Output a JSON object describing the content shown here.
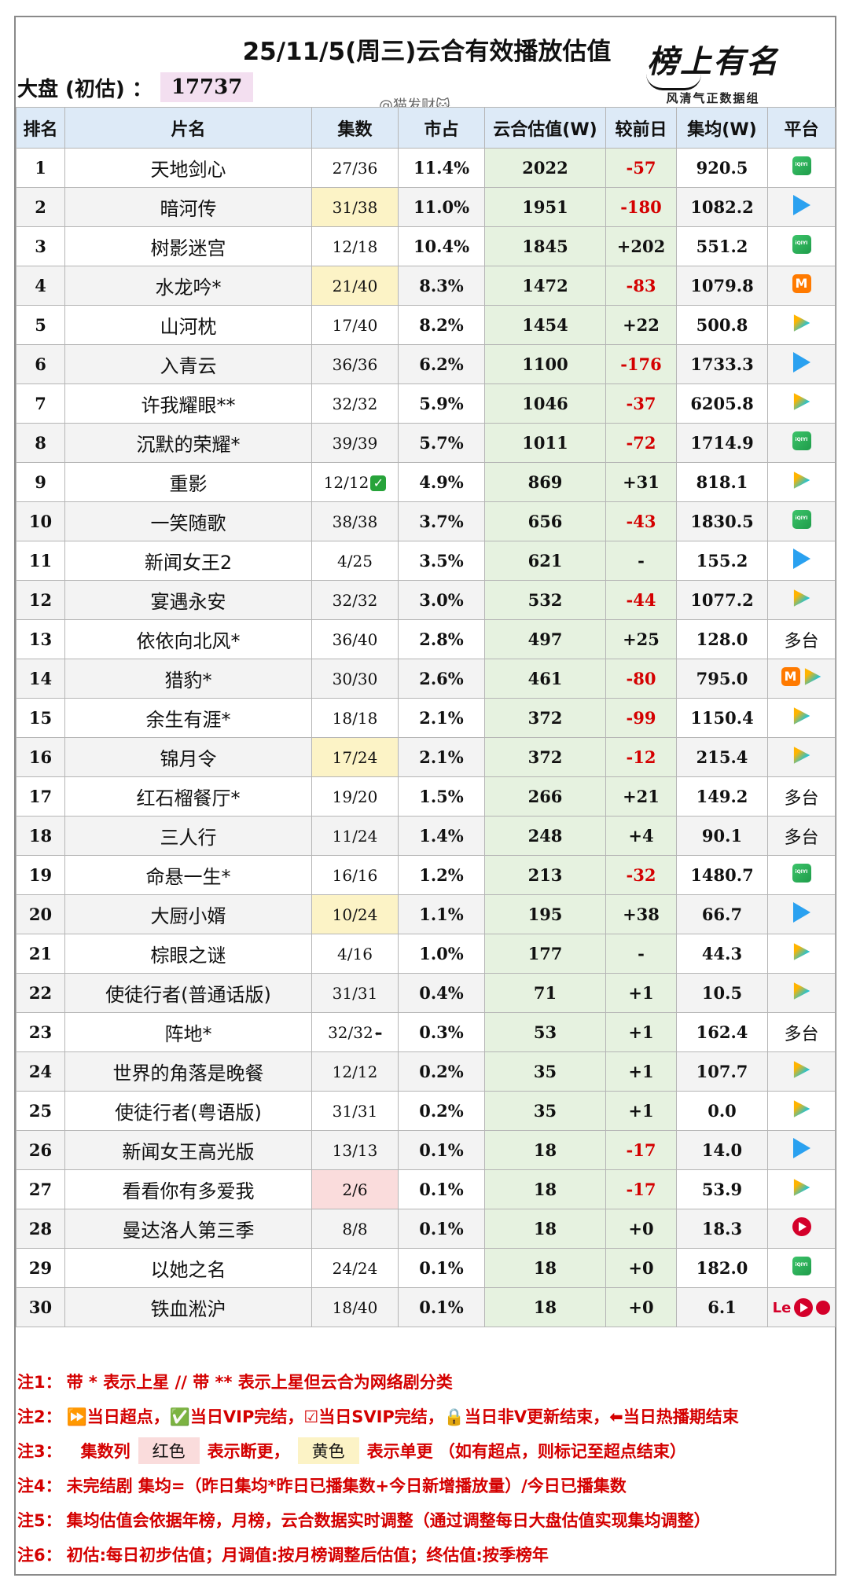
{
  "title": "25/11/5(周三)云合有效播放估值",
  "market": {
    "label": "大盘 (初估) ：",
    "value": "17737"
  },
  "watermark": "@猫发财🐱",
  "logo": {
    "script": "榜上有名",
    "sub": "风清气正数据组"
  },
  "headers": [
    "排名",
    "片名",
    "集数",
    "市占",
    "云合估值(W)",
    "较前日",
    "集均(W)",
    "平台"
  ],
  "rows": [
    {
      "rank": "1",
      "name": "天地剑心",
      "ep": "27/36",
      "share": "11.4%",
      "est": "2022",
      "change": "-57",
      "avg": "920.5",
      "platform": [
        "iqiyi"
      ]
    },
    {
      "rank": "2",
      "name": "暗河传",
      "ep": "31/38",
      "share": "11.0%",
      "est": "1951",
      "change": "-180",
      "avg": "1082.2",
      "platform": [
        "youku"
      ],
      "ep_color": "yellow"
    },
    {
      "rank": "3",
      "name": "树影迷宫",
      "ep": "12/18",
      "share": "10.4%",
      "est": "1845",
      "change": "+202",
      "avg": "551.2",
      "platform": [
        "iqiyi"
      ]
    },
    {
      "rank": "4",
      "name": "水龙吟*",
      "ep": "21/40",
      "share": "8.3%",
      "est": "1472",
      "change": "-83",
      "avg": "1079.8",
      "platform": [
        "mango"
      ],
      "ep_color": "yellow"
    },
    {
      "rank": "5",
      "name": "山河枕",
      "ep": "17/40",
      "share": "8.2%",
      "est": "1454",
      "change": "+22",
      "avg": "500.8",
      "platform": [
        "tencent"
      ]
    },
    {
      "rank": "6",
      "name": "入青云",
      "ep": "36/36",
      "share": "6.2%",
      "est": "1100",
      "change": "-176",
      "avg": "1733.3",
      "platform": [
        "youku"
      ]
    },
    {
      "rank": "7",
      "name": "许我耀眼**",
      "ep": "32/32",
      "share": "5.9%",
      "est": "1046",
      "change": "-37",
      "avg": "6205.8",
      "platform": [
        "tencent"
      ]
    },
    {
      "rank": "8",
      "name": "沉默的荣耀*",
      "ep": "39/39",
      "share": "5.7%",
      "est": "1011",
      "change": "-72",
      "avg": "1714.9",
      "platform": [
        "iqiyi"
      ]
    },
    {
      "rank": "9",
      "name": "重影",
      "ep": "12/12",
      "share": "4.9%",
      "est": "869",
      "change": "+31",
      "avg": "818.1",
      "platform": [
        "tencent"
      ],
      "ep_mark": "check"
    },
    {
      "rank": "10",
      "name": "一笑随歌",
      "ep": "38/38",
      "share": "3.7%",
      "est": "656",
      "change": "-43",
      "avg": "1830.5",
      "platform": [
        "iqiyi"
      ]
    },
    {
      "rank": "11",
      "name": "新闻女王2",
      "ep": "4/25",
      "share": "3.5%",
      "est": "621",
      "change": "-",
      "avg": "155.2",
      "platform": [
        "youku"
      ]
    },
    {
      "rank": "12",
      "name": "宴遇永安",
      "ep": "32/32",
      "share": "3.0%",
      "est": "532",
      "change": "-44",
      "avg": "1077.2",
      "platform": [
        "tencent"
      ]
    },
    {
      "rank": "13",
      "name": "依依向北风*",
      "ep": "36/40",
      "share": "2.8%",
      "est": "497",
      "change": "+25",
      "avg": "128.0",
      "platform_text": "多台"
    },
    {
      "rank": "14",
      "name": "猎豹*",
      "ep": "30/30",
      "share": "2.6%",
      "est": "461",
      "change": "-80",
      "avg": "795.0",
      "platform": [
        "mango",
        "tencent"
      ]
    },
    {
      "rank": "15",
      "name": "余生有涯*",
      "ep": "18/18",
      "share": "2.1%",
      "est": "372",
      "change": "-99",
      "avg": "1150.4",
      "platform": [
        "tencent"
      ]
    },
    {
      "rank": "16",
      "name": "锦月令",
      "ep": "17/24",
      "share": "2.1%",
      "est": "372",
      "change": "-12",
      "avg": "215.4",
      "platform": [
        "tencent"
      ],
      "ep_color": "yellow"
    },
    {
      "rank": "17",
      "name": "红石榴餐厅*",
      "ep": "19/20",
      "share": "1.5%",
      "est": "266",
      "change": "+21",
      "avg": "149.2",
      "platform_text": "多台"
    },
    {
      "rank": "18",
      "name": "三人行",
      "ep": "11/24",
      "share": "1.4%",
      "est": "248",
      "change": "+4",
      "avg": "90.1",
      "platform_text": "多台"
    },
    {
      "rank": "19",
      "name": "命悬一生*",
      "ep": "16/16",
      "share": "1.2%",
      "est": "213",
      "change": "-32",
      "avg": "1480.7",
      "platform": [
        "iqiyi"
      ]
    },
    {
      "rank": "20",
      "name": "大厨小婿",
      "ep": "10/24",
      "share": "1.1%",
      "est": "195",
      "change": "+38",
      "avg": "66.7",
      "platform": [
        "youku"
      ],
      "ep_color": "yellow"
    },
    {
      "rank": "21",
      "name": "棕眼之谜",
      "ep": "4/16",
      "share": "1.0%",
      "est": "177",
      "change": "-",
      "avg": "44.3",
      "platform": [
        "tencent"
      ]
    },
    {
      "rank": "22",
      "name": "使徒行者(普通话版)",
      "ep": "31/31",
      "share": "0.4%",
      "est": "71",
      "change": "+1",
      "avg": "10.5",
      "platform": [
        "tencent"
      ]
    },
    {
      "rank": "23",
      "name": "阵地*",
      "ep": "32/32",
      "share": "0.3%",
      "est": "53",
      "change": "+1",
      "avg": "162.4",
      "platform_text": "多台",
      "ep_mark": "end"
    },
    {
      "rank": "24",
      "name": "世界的角落是晚餐",
      "ep": "12/12",
      "share": "0.2%",
      "est": "35",
      "change": "+1",
      "avg": "107.7",
      "platform": [
        "tencent"
      ]
    },
    {
      "rank": "25",
      "name": "使徒行者(粤语版)",
      "ep": "31/31",
      "share": "0.2%",
      "est": "35",
      "change": "+1",
      "avg": "0.0",
      "platform": [
        "tencent"
      ]
    },
    {
      "rank": "26",
      "name": "新闻女王高光版",
      "ep": "13/13",
      "share": "0.1%",
      "est": "18",
      "change": "-17",
      "avg": "14.0",
      "platform": [
        "youku"
      ]
    },
    {
      "rank": "27",
      "name": "看看你有多爱我",
      "ep": "2/6",
      "share": "0.1%",
      "est": "18",
      "change": "-17",
      "avg": "53.9",
      "platform": [
        "tencent"
      ],
      "ep_color": "pink"
    },
    {
      "rank": "28",
      "name": "曼达洛人第三季",
      "ep": "8/8",
      "share": "0.1%",
      "est": "18",
      "change": "+0",
      "avg": "18.3",
      "platform": [
        "mgtv"
      ]
    },
    {
      "rank": "29",
      "name": "以她之名",
      "ep": "24/24",
      "share": "0.1%",
      "est": "18",
      "change": "+0",
      "avg": "182.0",
      "platform": [
        "iqiyi"
      ]
    },
    {
      "rank": "30",
      "name": "铁血淞沪",
      "ep": "18/40",
      "share": "0.1%",
      "est": "18",
      "change": "+0",
      "avg": "6.1",
      "platform": [
        "le",
        "mgtv",
        "red"
      ]
    }
  ],
  "notes": {
    "n1": {
      "label": "注1：",
      "text": "带 * 表示上星 // 带 ** 表示上星但云合为网络剧分类"
    },
    "n2": {
      "label": "注2：",
      "text": "⏩当日超点，✅当日VIP完结，☑当日SVIP完结，🔒当日非V更新结束，⬅当日热播期结束"
    },
    "n3": {
      "label": "注3：",
      "a": "集数列",
      "red": "红色",
      "b": "表示断更，",
      "yellow": "黄色",
      "c": "表示单更 （如有超点，则标记至超点结束）"
    },
    "n4": {
      "label": "注4：",
      "text": "未完结剧 集均=（昨日集均*昨日已播集数+今日新增播放量）/今日已播集数"
    },
    "n5": {
      "label": "注5：",
      "text": "集均估值会依据年榜，月榜，云合数据实时调整（通过调整每日大盘估值实现集均调整）"
    },
    "n6": {
      "label": "注6：",
      "text": "初估:每日初步估值；月调值:按月榜调整后估值；终估值:按季榜年"
    }
  },
  "colors": {
    "header_bg": "#ddeaf7",
    "est_bg": "#e6f2e0",
    "neg": "#d40000",
    "yellow_ep": "#fcf3c6",
    "pink_ep": "#fadcdc",
    "market_bg": "#f3dff0"
  }
}
